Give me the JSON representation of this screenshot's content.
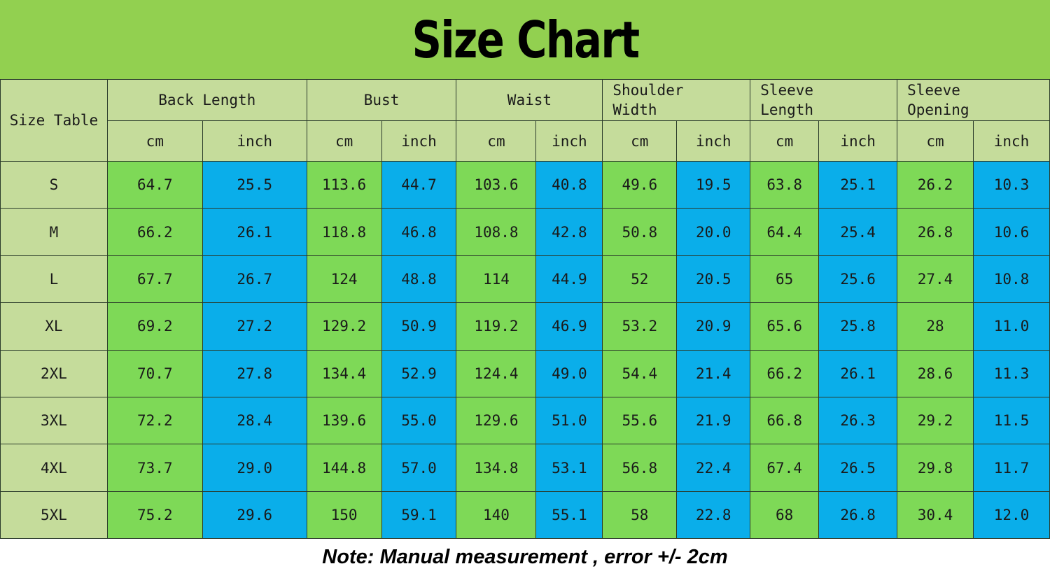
{
  "title": "Size Chart",
  "row_header_label": "Size Table",
  "units": {
    "cm": "cm",
    "inch": "inch"
  },
  "colors": {
    "banner": "#92d050",
    "header_cells": "#c5dc9b",
    "cm_cells": "#7ed957",
    "inch_cells": "#0aaeea"
  },
  "chart_data": {
    "type": "table",
    "title": "Size Chart",
    "row_header": "Size Table",
    "columns": [
      {
        "name": "Back Length",
        "units": [
          "cm",
          "inch"
        ]
      },
      {
        "name": "Bust",
        "units": [
          "cm",
          "inch"
        ]
      },
      {
        "name": "Waist",
        "units": [
          "cm",
          "inch"
        ]
      },
      {
        "name": "Shoulder Width",
        "units": [
          "cm",
          "inch"
        ]
      },
      {
        "name": "Sleeve Length",
        "units": [
          "cm",
          "inch"
        ]
      },
      {
        "name": "Sleeve Opening",
        "units": [
          "cm",
          "inch"
        ]
      }
    ],
    "rows": [
      {
        "size": "S",
        "values": [
          "64.7",
          "25.5",
          "113.6",
          "44.7",
          "103.6",
          "40.8",
          "49.6",
          "19.5",
          "63.8",
          "25.1",
          "26.2",
          "10.3"
        ]
      },
      {
        "size": "M",
        "values": [
          "66.2",
          "26.1",
          "118.8",
          "46.8",
          "108.8",
          "42.8",
          "50.8",
          "20.0",
          "64.4",
          "25.4",
          "26.8",
          "10.6"
        ]
      },
      {
        "size": "L",
        "values": [
          "67.7",
          "26.7",
          "124",
          "48.8",
          "114",
          "44.9",
          "52",
          "20.5",
          "65",
          "25.6",
          "27.4",
          "10.8"
        ]
      },
      {
        "size": "XL",
        "values": [
          "69.2",
          "27.2",
          "129.2",
          "50.9",
          "119.2",
          "46.9",
          "53.2",
          "20.9",
          "65.6",
          "25.8",
          "28",
          "11.0"
        ]
      },
      {
        "size": "2XL",
        "values": [
          "70.7",
          "27.8",
          "134.4",
          "52.9",
          "124.4",
          "49.0",
          "54.4",
          "21.4",
          "66.2",
          "26.1",
          "28.6",
          "11.3"
        ]
      },
      {
        "size": "3XL",
        "values": [
          "72.2",
          "28.4",
          "139.6",
          "55.0",
          "129.6",
          "51.0",
          "55.6",
          "21.9",
          "66.8",
          "26.3",
          "29.2",
          "11.5"
        ]
      },
      {
        "size": "4XL",
        "values": [
          "73.7",
          "29.0",
          "144.8",
          "57.0",
          "134.8",
          "53.1",
          "56.8",
          "22.4",
          "67.4",
          "26.5",
          "29.8",
          "11.7"
        ]
      },
      {
        "size": "5XL",
        "values": [
          "75.2",
          "29.6",
          "150",
          "59.1",
          "140",
          "55.1",
          "58",
          "22.8",
          "68",
          "26.8",
          "30.4",
          "12.0"
        ]
      }
    ]
  },
  "note": "Note: Manual measurement , error +/- 2cm"
}
